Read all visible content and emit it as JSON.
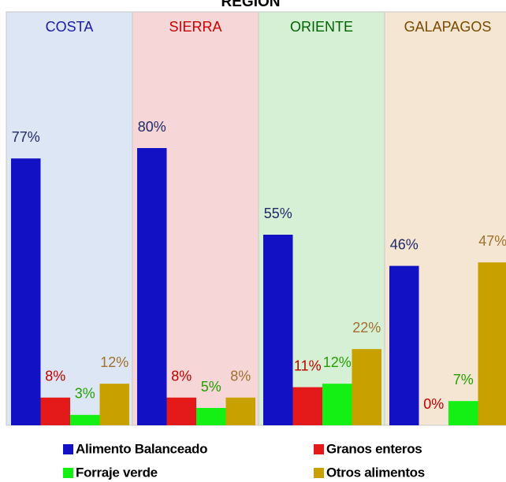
{
  "chart_data": {
    "type": "bar",
    "title": "REGION",
    "categories": [
      "COSTA",
      "SIERRA",
      "ORIENTE",
      "GALAPAGOS"
    ],
    "series": [
      {
        "name": "Alimento Balanceado",
        "color": "#1212c4",
        "values": [
          77,
          80,
          55,
          46
        ],
        "value_labels": [
          "77%",
          "80%",
          "55%",
          "46%"
        ]
      },
      {
        "name": "Granos enteros",
        "color": "#e41a1a",
        "values": [
          8,
          8,
          11,
          0
        ],
        "value_labels": [
          "8%",
          "8%",
          "11%",
          "0%"
        ]
      },
      {
        "name": "Forraje verde",
        "color": "#14f014",
        "values": [
          3,
          5,
          12,
          7
        ],
        "value_labels": [
          "3%",
          "5%",
          "12%",
          "7%"
        ]
      },
      {
        "name": "Otros alimentos",
        "color": "#c8a000",
        "values": [
          12,
          8,
          22,
          47
        ],
        "value_labels": [
          "12%",
          "8%",
          "22%",
          "47%"
        ]
      }
    ],
    "legend": "bottom"
  }
}
